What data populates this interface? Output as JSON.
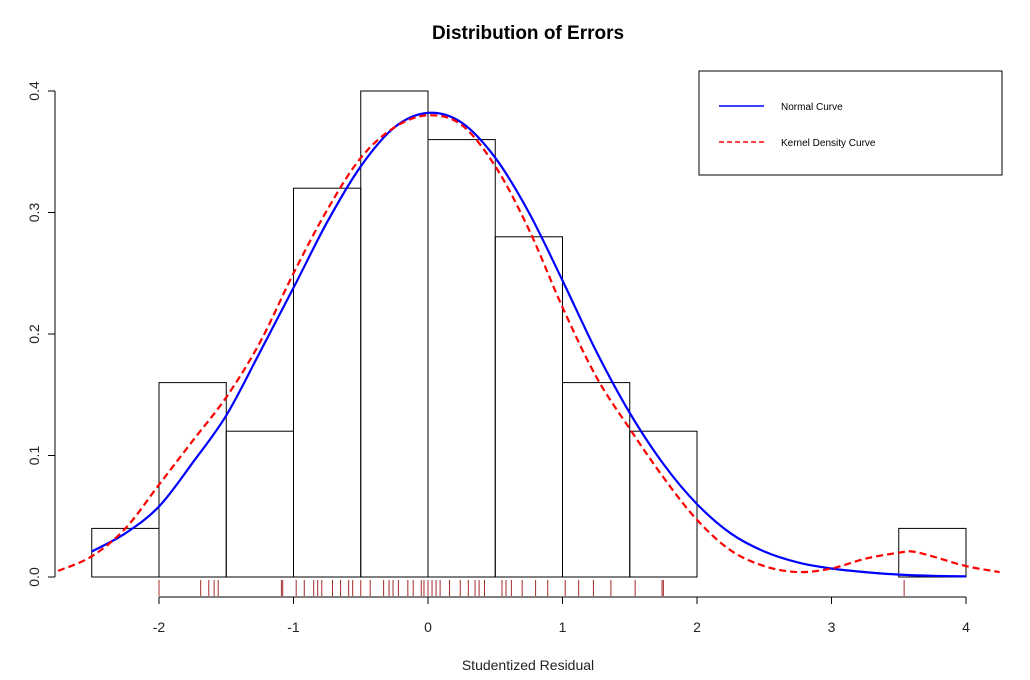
{
  "chart_data": {
    "type": "histogram",
    "title": "Distribution of Errors",
    "xlabel": "Studentized Residual",
    "ylabel": "",
    "xlim": [
      -2.5,
      4
    ],
    "ylim": [
      0,
      0.4
    ],
    "x_ticks": [
      -2,
      -1,
      0,
      1,
      2,
      3,
      4
    ],
    "x_tick_labels": [
      "-2",
      "-1",
      "0",
      "1",
      "2",
      "3",
      "4"
    ],
    "y_ticks": [
      0,
      0.1,
      0.2,
      0.3,
      0.4
    ],
    "y_tick_labels": [
      "0.0",
      "0.1",
      "0.2",
      "0.3",
      "0.4"
    ],
    "bins": [
      {
        "x0": -2.5,
        "x1": -2.0,
        "density": 0.04
      },
      {
        "x0": -2.0,
        "x1": -1.5,
        "density": 0.16
      },
      {
        "x0": -1.5,
        "x1": -1.0,
        "density": 0.12
      },
      {
        "x0": -1.0,
        "x1": -0.5,
        "density": 0.32
      },
      {
        "x0": -0.5,
        "x1": 0.0,
        "density": 0.4
      },
      {
        "x0": 0.0,
        "x1": 0.5,
        "density": 0.36
      },
      {
        "x0": 0.5,
        "x1": 1.0,
        "density": 0.28
      },
      {
        "x0": 1.0,
        "x1": 1.5,
        "density": 0.16
      },
      {
        "x0": 1.5,
        "x1": 2.0,
        "density": 0.12
      },
      {
        "x0": 2.0,
        "x1": 2.5,
        "density": 0.0
      },
      {
        "x0": 2.5,
        "x1": 3.0,
        "density": 0.0
      },
      {
        "x0": 3.0,
        "x1": 3.5,
        "density": 0.0
      },
      {
        "x0": 3.5,
        "x1": 4.0,
        "density": 0.04
      }
    ],
    "series": [
      {
        "name": "Normal Curve",
        "color": "#0000ff",
        "dash": "solid",
        "x": [
          -2.5,
          -2.25,
          -2.0,
          -1.75,
          -1.5,
          -1.25,
          -1.0,
          -0.75,
          -0.5,
          -0.25,
          0.0,
          0.25,
          0.5,
          0.75,
          1.0,
          1.25,
          1.5,
          1.75,
          2.0,
          2.25,
          2.5,
          2.75,
          3.0,
          3.25,
          3.5,
          3.75,
          4.0
        ],
        "y": [
          0.021,
          0.036,
          0.058,
          0.094,
          0.133,
          0.185,
          0.238,
          0.292,
          0.338,
          0.37,
          0.382,
          0.374,
          0.345,
          0.3,
          0.244,
          0.186,
          0.135,
          0.093,
          0.06,
          0.036,
          0.021,
          0.012,
          0.007,
          0.004,
          0.002,
          0.001,
          0.0005
        ]
      },
      {
        "name": "Kernel Density Curve",
        "color": "#ff0000",
        "dash": "dashed",
        "x": [
          -2.75,
          -2.5,
          -2.25,
          -2.0,
          -1.75,
          -1.5,
          -1.25,
          -1.0,
          -0.75,
          -0.5,
          -0.25,
          0.0,
          0.25,
          0.5,
          0.75,
          1.0,
          1.25,
          1.5,
          1.75,
          2.0,
          2.25,
          2.5,
          2.75,
          3.0,
          3.25,
          3.5,
          3.6,
          3.75,
          4.0,
          4.25
        ],
        "y": [
          0.005,
          0.017,
          0.04,
          0.076,
          0.112,
          0.148,
          0.193,
          0.25,
          0.302,
          0.345,
          0.37,
          0.38,
          0.372,
          0.338,
          0.286,
          0.222,
          0.165,
          0.122,
          0.082,
          0.047,
          0.022,
          0.009,
          0.004,
          0.007,
          0.015,
          0.02,
          0.021,
          0.017,
          0.009,
          0.004
        ]
      }
    ],
    "rug": [
      -2.0,
      -1.69,
      -1.63,
      -1.59,
      -1.56,
      -1.09,
      -1.08,
      -0.98,
      -0.92,
      -0.85,
      -0.82,
      -0.79,
      -0.71,
      -0.65,
      -0.59,
      -0.56,
      -0.5,
      -0.43,
      -0.33,
      -0.29,
      -0.26,
      -0.22,
      -0.15,
      -0.11,
      -0.05,
      -0.03,
      0.0,
      0.03,
      0.06,
      0.09,
      0.16,
      0.24,
      0.3,
      0.35,
      0.38,
      0.42,
      0.55,
      0.58,
      0.62,
      0.7,
      0.8,
      0.89,
      1.02,
      1.12,
      1.23,
      1.36,
      1.54,
      1.74,
      1.75,
      3.54
    ],
    "rug_color": "#a52a2a",
    "legend": {
      "position": "top-right",
      "entries": [
        {
          "label": "Normal Curve",
          "color": "#0000ff",
          "dash": "solid"
        },
        {
          "label": "Kernel Density Curve",
          "color": "#ff0000",
          "dash": "dashed"
        }
      ]
    },
    "grid": false
  }
}
